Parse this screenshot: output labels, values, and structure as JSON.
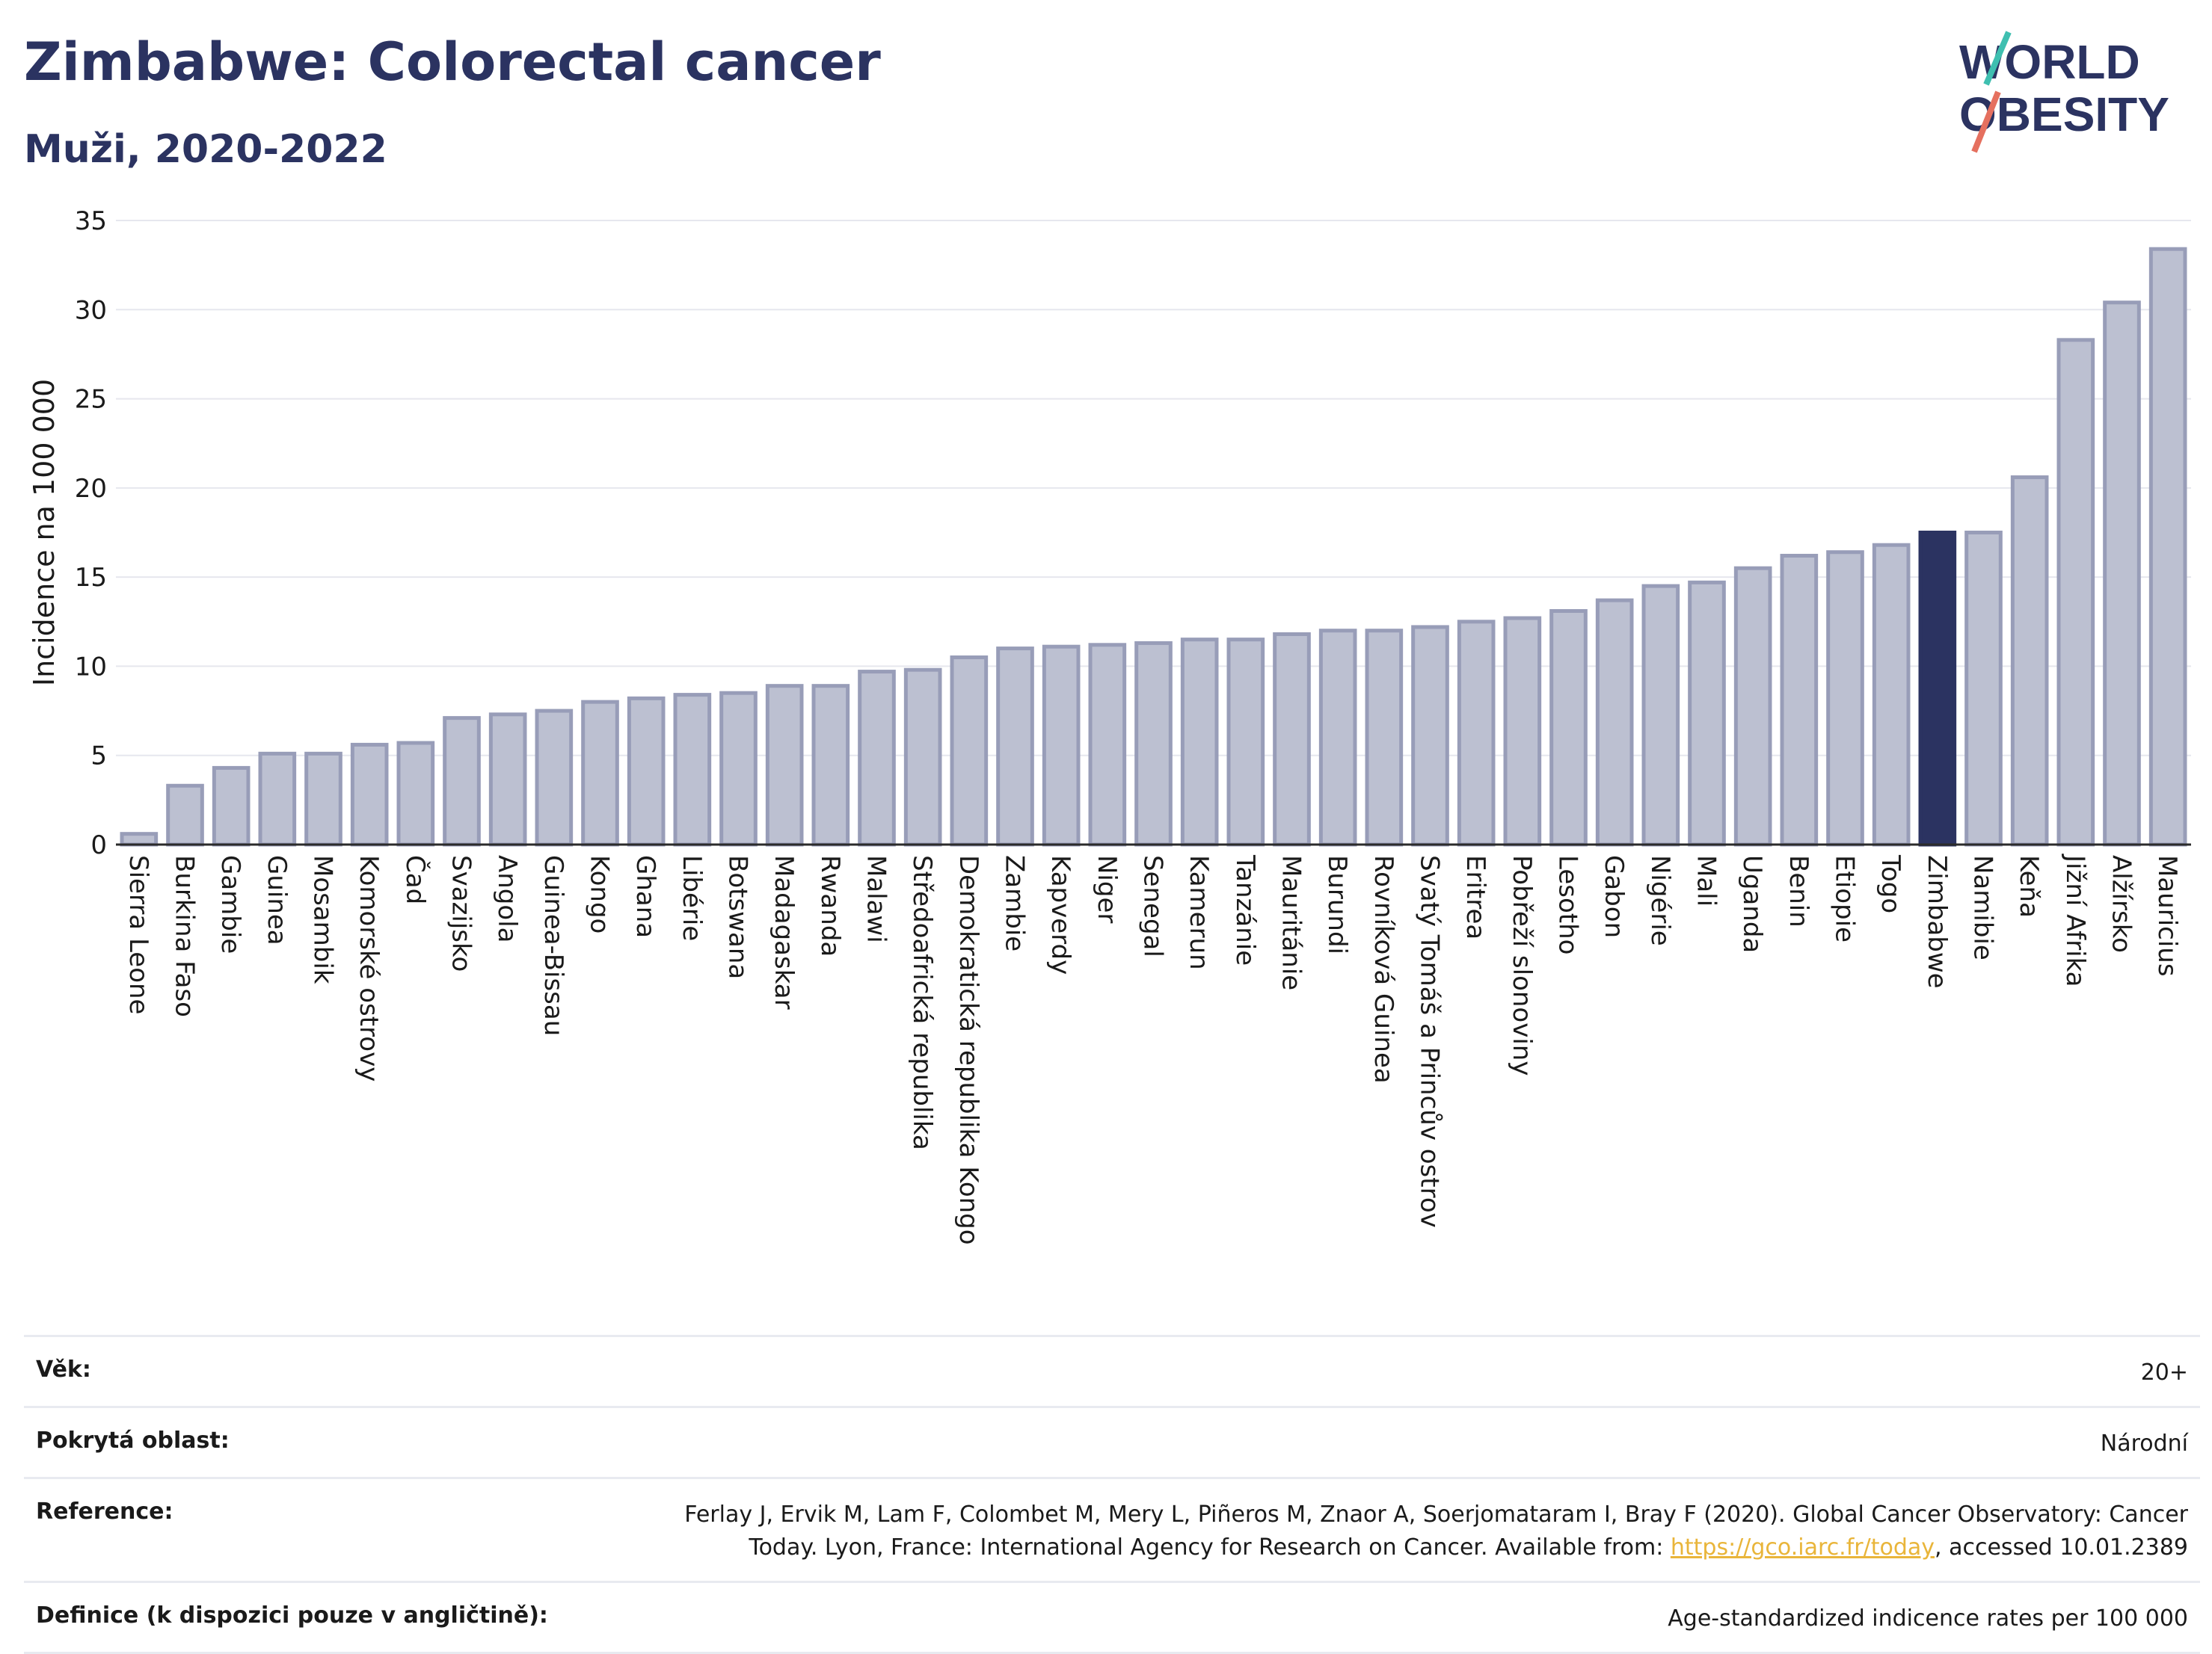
{
  "header": {
    "title": "Zimbabwe: Colorectal cancer",
    "subtitle": "Muži, 2020-2022"
  },
  "logo": {
    "line1": "WORLD",
    "line2": "OBESITY"
  },
  "chart_data": {
    "type": "bar",
    "ylabel": "Incidence na 100 000",
    "xlabel": "",
    "ylim": [
      0,
      35
    ],
    "yticks": [
      0,
      5,
      10,
      15,
      20,
      25,
      30,
      35
    ],
    "grid": true,
    "highlight": "Zimbabwe",
    "colors": {
      "bar": "#bcc0d1",
      "bar_border": "#989db8",
      "highlight": "#2b3361"
    },
    "categories": [
      "Sierra Leone",
      "Burkina Faso",
      "Gambie",
      "Guinea",
      "Mosambik",
      "Komorské ostrovy",
      "Čad",
      "Svazijsko",
      "Angola",
      "Guinea-Bissau",
      "Kongo",
      "Ghana",
      "Libérie",
      "Botswana",
      "Madagaskar",
      "Rwanda",
      "Malawi",
      "Středoafrická republika",
      "Demokratická republika Kongo",
      "Zambie",
      "Kapverdy",
      "Niger",
      "Senegal",
      "Kamerun",
      "Tanzánie",
      "Mauritánie",
      "Burundi",
      "Rovníková Guinea",
      "Svatý Tomáš a Princův ostrov",
      "Eritrea",
      "Pobřeží slonoviny",
      "Lesotho",
      "Gabon",
      "Nigérie",
      "Mali",
      "Uganda",
      "Benin",
      "Etiopie",
      "Togo",
      "Zimbabwe",
      "Namibie",
      "Keňa",
      "Jižní Afrika",
      "Alžírsko",
      "Mauricius"
    ],
    "values": [
      0.6,
      3.3,
      4.3,
      5.1,
      5.1,
      5.6,
      5.7,
      7.1,
      7.3,
      7.5,
      8.0,
      8.2,
      8.4,
      8.5,
      8.9,
      8.9,
      9.7,
      9.8,
      10.5,
      11.0,
      11.1,
      11.2,
      11.3,
      11.5,
      11.5,
      11.8,
      12.0,
      12.0,
      12.2,
      12.5,
      12.7,
      13.1,
      13.7,
      14.5,
      14.7,
      15.5,
      16.2,
      16.4,
      16.8,
      17.5,
      17.5,
      20.6,
      28.3,
      30.4,
      33.4
    ]
  },
  "meta": {
    "rows": [
      {
        "label": "Věk:",
        "value": "20+"
      },
      {
        "label": "Pokrytá oblast:",
        "value": "Národní"
      },
      {
        "label": "Reference:",
        "value_line1": "Ferlay J, Ervik M, Lam F, Colombet M, Mery L, Piñeros M, Znaor A, Soerjomataram I, Bray F (2020). Global Cancer Observatory: Cancer",
        "value_line2_pre": "Today. Lyon, France: International Agency for Research on Cancer. Available from: ",
        "link": "https://gco.iarc.fr/today",
        "value_line2_post": ", accessed 10.01.2389"
      },
      {
        "label": "Definice (k dispozici pouze v angličtině):",
        "value": "Age-standardized indicence rates per 100 000"
      }
    ]
  }
}
